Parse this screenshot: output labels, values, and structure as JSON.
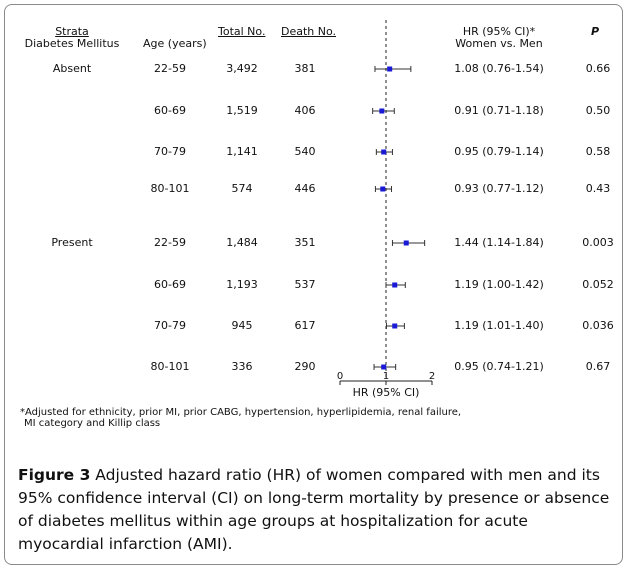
{
  "headers": {
    "strata": "Strata",
    "diabetes": "Diabetes Mellitus",
    "age": "Age (years)",
    "total": "Total No.",
    "death": "Death No.",
    "hr_line1": "HR (95% CI)*",
    "hr_line2": "Women vs. Men",
    "p": "P"
  },
  "rows": [
    {
      "group": "Absent",
      "age": "22-59",
      "total": "3,492",
      "death": "381",
      "hr_text": "1.08 (0.76-1.54)",
      "p": "0.66"
    },
    {
      "group": "",
      "age": "60-69",
      "total": "1,519",
      "death": "406",
      "hr_text": "0.91 (0.71-1.18)",
      "p": "0.50"
    },
    {
      "group": "",
      "age": "70-79",
      "total": "1,141",
      "death": "540",
      "hr_text": "0.95 (0.79-1.14)",
      "p": "0.58"
    },
    {
      "group": "",
      "age": "80-101",
      "total": "574",
      "death": "446",
      "hr_text": "0.93 (0.77-1.12)",
      "p": "0.43"
    },
    {
      "group": "Present",
      "age": "22-59",
      "total": "1,484",
      "death": "351",
      "hr_text": "1.44 (1.14-1.84)",
      "p": "0.003"
    },
    {
      "group": "",
      "age": "60-69",
      "total": "1,193",
      "death": "537",
      "hr_text": "1.19 (1.00-1.42)",
      "p": "0.052"
    },
    {
      "group": "",
      "age": "70-79",
      "total": "945",
      "death": "617",
      "hr_text": "1.19 (1.01-1.40)",
      "p": "0.036"
    },
    {
      "group": "",
      "age": "80-101",
      "total": "336",
      "death": "290",
      "hr_text": "0.95 (0.74-1.21)",
      "p": "0.67"
    }
  ],
  "chart_data": {
    "type": "forest",
    "xlabel": "HR (95% CI)",
    "xlim": [
      0,
      2
    ],
    "xticks": [
      "0",
      "1",
      "2"
    ],
    "reference_line": 1,
    "categories": [
      "Absent 22-59",
      "Absent 60-69",
      "Absent 70-79",
      "Absent 80-101",
      "Present 22-59",
      "Present 60-69",
      "Present 70-79",
      "Present 80-101"
    ],
    "hr": [
      1.08,
      0.91,
      0.95,
      0.93,
      1.44,
      1.19,
      1.19,
      0.95
    ],
    "ci_low": [
      0.76,
      0.71,
      0.79,
      0.77,
      1.14,
      1.0,
      1.01,
      0.74
    ],
    "ci_high": [
      1.54,
      1.18,
      1.14,
      1.12,
      1.84,
      1.42,
      1.4,
      1.21
    ],
    "marker_color": "#1a1ad6"
  },
  "footnote": {
    "line1": "*Adjusted for ethnicity, prior MI, prior CABG, hypertension, hyperlipidemia, renal failure,",
    "line2": "MI category and Killip class"
  },
  "caption": {
    "label": "Figure 3",
    "text": " Adjusted hazard ratio (HR) of women compared with men and its 95% confidence interval (CI) on long-term mortality by presence or absence of diabetes mellitus within age groups at hospitalization for acute myocardial infarction (AMI)."
  }
}
